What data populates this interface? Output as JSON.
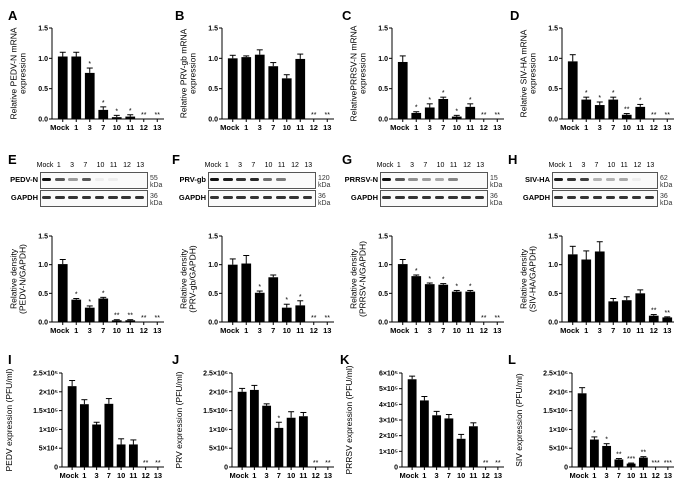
{
  "panels": {
    "A": "A",
    "B": "B",
    "C": "C",
    "D": "D",
    "E": "E",
    "F": "F",
    "G": "G",
    "H": "H",
    "I": "I",
    "J": "J",
    "K": "K",
    "L": "L"
  },
  "blots": [
    {
      "panel": "E",
      "lanes": [
        "Mock",
        "1",
        "3",
        "7",
        "10",
        "11",
        "12",
        "13"
      ],
      "target": "PEDV-N",
      "target_kda": "55 kDa",
      "ctrl": "GAPDH",
      "ctrl_kda": "36 kDa",
      "target_intensity": [
        1,
        0.7,
        0.4,
        0.7,
        0.05,
        0.05,
        0,
        0
      ]
    },
    {
      "panel": "F",
      "lanes": [
        "Mock",
        "1",
        "3",
        "7",
        "10",
        "11",
        "12",
        "13"
      ],
      "target": "PRV-gb",
      "target_kda": "120 kDa",
      "ctrl": "GAPDH",
      "ctrl_kda": "36 kDa",
      "target_intensity": [
        1,
        0.95,
        0.85,
        0.9,
        0.6,
        0.55,
        0,
        0
      ]
    },
    {
      "panel": "G",
      "lanes": [
        "Mock",
        "1",
        "3",
        "7",
        "10",
        "11",
        "12",
        "13"
      ],
      "target": "PRRSV-N",
      "target_kda": "15 kDa",
      "ctrl": "GAPDH",
      "ctrl_kda": "36 kDa",
      "target_intensity": [
        1,
        0.7,
        0.45,
        0.4,
        0.35,
        0.5,
        0,
        0
      ]
    },
    {
      "panel": "H",
      "lanes": [
        "Mock",
        "1",
        "3",
        "7",
        "10",
        "11",
        "12",
        "13"
      ],
      "target": "SIV-HA",
      "target_kda": "62 kDa",
      "ctrl": "GAPDH",
      "ctrl_kda": "36 kDa",
      "target_intensity": [
        0.95,
        0.85,
        0.8,
        0.3,
        0.3,
        0.35,
        0.05,
        0
      ]
    }
  ],
  "chart_data": [
    {
      "panel": "A",
      "type": "bar",
      "ylabel": "Relative PEDV-N mRNA expression",
      "ylim": [
        0,
        1.5
      ],
      "yticks": [
        "0.0",
        "0.5",
        "1.0",
        "1.5"
      ],
      "yticks_v": [
        0,
        0.5,
        1,
        1.5
      ],
      "categories": [
        "Mock",
        "1",
        "3",
        "7",
        "10",
        "11",
        "12",
        "13"
      ],
      "values": [
        1.03,
        1.03,
        0.76,
        0.15,
        0.03,
        0.04,
        0,
        0
      ],
      "errors": [
        0.07,
        0.07,
        0.08,
        0.05,
        0.03,
        0.03,
        0,
        0
      ],
      "sig": [
        "",
        "",
        "*",
        "*",
        "*",
        "*",
        "**",
        "**"
      ]
    },
    {
      "panel": "B",
      "type": "bar",
      "ylabel": "Relative PRV-gb mRNA expression",
      "ylim": [
        0,
        1.5
      ],
      "yticks": [
        "0.0",
        "0.5",
        "1.0",
        "1.5"
      ],
      "yticks_v": [
        0,
        0.5,
        1,
        1.5
      ],
      "categories": [
        "Mock",
        "1",
        "3",
        "7",
        "10",
        "11",
        "12",
        "13"
      ],
      "values": [
        1.0,
        1.02,
        1.06,
        0.87,
        0.67,
        0.99,
        0,
        0
      ],
      "errors": [
        0.05,
        0.02,
        0.08,
        0.06,
        0.06,
        0.08,
        0,
        0
      ],
      "sig": [
        "",
        "",
        "",
        "",
        "",
        "",
        "**",
        "**"
      ]
    },
    {
      "panel": "C",
      "type": "bar",
      "ylabel": "RelativePRRSV-N mRNA expression",
      "ylim": [
        0,
        1.5
      ],
      "yticks": [
        "0.0",
        "0.5",
        "1.0",
        "1.5"
      ],
      "yticks_v": [
        0,
        0.5,
        1,
        1.5
      ],
      "categories": [
        "Mock",
        "1",
        "3",
        "7",
        "10",
        "11",
        "12",
        "13"
      ],
      "values": [
        0.94,
        0.1,
        0.19,
        0.33,
        0.04,
        0.2,
        0,
        0
      ],
      "errors": [
        0.1,
        0.02,
        0.06,
        0.03,
        0.02,
        0.05,
        0,
        0
      ],
      "sig": [
        "",
        "*",
        "*",
        "*",
        "*",
        "*",
        "**",
        "**"
      ]
    },
    {
      "panel": "D",
      "type": "bar",
      "ylabel": "Relative SIV-HA mRNA expression",
      "ylim": [
        0,
        1.5
      ],
      "yticks": [
        "0.0",
        "0.5",
        "1.0",
        "1.5"
      ],
      "yticks_v": [
        0,
        0.5,
        1,
        1.5
      ],
      "categories": [
        "Mock",
        "1",
        "3",
        "7",
        "10",
        "11",
        "12",
        "13"
      ],
      "values": [
        0.95,
        0.32,
        0.23,
        0.32,
        0.07,
        0.2,
        0,
        0
      ],
      "errors": [
        0.11,
        0.04,
        0.05,
        0.04,
        0.02,
        0.04,
        0,
        0
      ],
      "sig": [
        "",
        "*",
        "*",
        "*",
        "**",
        "*",
        "**",
        "**"
      ]
    },
    {
      "panel": "E",
      "type": "bar",
      "ylabel": "Relative density (PEDV-N/GAPDH)",
      "ylim": [
        0,
        1.5
      ],
      "yticks": [
        "0.0",
        "0.5",
        "1.0",
        "1.5"
      ],
      "yticks_v": [
        0,
        0.5,
        1,
        1.5
      ],
      "categories": [
        "Mock",
        "1",
        "3",
        "7",
        "10",
        "11",
        "12",
        "13"
      ],
      "values": [
        1.01,
        0.39,
        0.25,
        0.41,
        0.03,
        0.03,
        0,
        0
      ],
      "errors": [
        0.08,
        0.02,
        0.03,
        0.02,
        0.01,
        0.01,
        0,
        0
      ],
      "sig": [
        "",
        "*",
        "*",
        "*",
        "**",
        "**",
        "**",
        "**"
      ]
    },
    {
      "panel": "F",
      "type": "bar",
      "ylabel": "Relative density (PRV-gb/GAPDH)",
      "ylim": [
        0,
        1.5
      ],
      "yticks": [
        "0.0",
        "0.5",
        "1.0",
        "1.5"
      ],
      "yticks_v": [
        0,
        0.5,
        1,
        1.5
      ],
      "categories": [
        "Mock",
        "1",
        "3",
        "7",
        "10",
        "11",
        "12",
        "13"
      ],
      "values": [
        1.0,
        1.02,
        0.51,
        0.78,
        0.25,
        0.29,
        0,
        0
      ],
      "errors": [
        0.1,
        0.14,
        0.03,
        0.04,
        0.06,
        0.08,
        0,
        0
      ],
      "sig": [
        "",
        "",
        "*",
        "",
        "*",
        "*",
        "**",
        "**"
      ]
    },
    {
      "panel": "G",
      "type": "bar",
      "ylabel": "Relative density (PRRSV-N/GAPDH)",
      "ylim": [
        0,
        1.5
      ],
      "yticks": [
        "0.0",
        "0.5",
        "1.0",
        "1.5"
      ],
      "yticks_v": [
        0,
        0.5,
        1,
        1.5
      ],
      "categories": [
        "Mock",
        "1",
        "3",
        "7",
        "10",
        "11",
        "12",
        "13"
      ],
      "values": [
        1.01,
        0.8,
        0.66,
        0.65,
        0.53,
        0.53,
        0,
        0
      ],
      "errors": [
        0.08,
        0.02,
        0.02,
        0.02,
        0.02,
        0.02,
        0,
        0
      ],
      "sig": [
        "",
        "*",
        "*",
        "*",
        "*",
        "*",
        "**",
        "**"
      ]
    },
    {
      "panel": "H",
      "type": "bar",
      "ylabel": "Relative density (SIV-HA/GAPDH)",
      "ylim": [
        0,
        1.5
      ],
      "yticks": [
        "0.0",
        "0.5",
        "1.0",
        "1.5"
      ],
      "yticks_v": [
        0,
        0.5,
        1,
        1.5
      ],
      "categories": [
        "Mock",
        "1",
        "3",
        "7",
        "10",
        "11",
        "12",
        "13"
      ],
      "values": [
        1.18,
        1.09,
        1.23,
        0.36,
        0.38,
        0.5,
        0.11,
        0.08
      ],
      "errors": [
        0.14,
        0.15,
        0.17,
        0.05,
        0.06,
        0.06,
        0.02,
        0.01
      ],
      "sig": [
        "",
        "",
        "",
        "",
        "",
        "",
        "**",
        "**"
      ]
    },
    {
      "panel": "I",
      "type": "bar",
      "ylabel": "PEDV expression (PFU/ml)",
      "ylim": [
        0,
        250000
      ],
      "yticks": [
        "0",
        "5×10⁴",
        "1×10⁵",
        "1.5×10⁵",
        "2×10⁵",
        "2.5×10⁵"
      ],
      "yticks_v": [
        0,
        50000,
        100000,
        150000,
        200000,
        250000
      ],
      "categories": [
        "Mock",
        "1",
        "3",
        "7",
        "10",
        "11",
        "12",
        "13"
      ],
      "values": [
        215000,
        167000,
        113000,
        168000,
        60000,
        60000,
        0,
        0
      ],
      "errors": [
        15000,
        12000,
        6000,
        14000,
        15000,
        12000,
        0,
        0
      ],
      "sig": [
        "",
        "",
        "",
        "",
        "",
        "",
        "**",
        "**"
      ]
    },
    {
      "panel": "J",
      "type": "bar",
      "ylabel": "PRV expression (PFU/ml)",
      "ylim": [
        0,
        2500000
      ],
      "yticks": [
        "0",
        "5×10⁵",
        "1×10⁶",
        "1.5×10⁶",
        "2×10⁶",
        "2.5×10⁶"
      ],
      "yticks_v": [
        0,
        500000,
        1000000,
        1500000,
        2000000,
        2500000
      ],
      "categories": [
        "Mock",
        "1",
        "3",
        "7",
        "10",
        "11",
        "12",
        "13"
      ],
      "values": [
        2000000,
        2050000,
        1630000,
        1040000,
        1310000,
        1350000,
        0,
        0
      ],
      "errors": [
        90000,
        120000,
        50000,
        150000,
        160000,
        100000,
        0,
        0
      ],
      "sig": [
        "",
        "",
        "",
        "*",
        "",
        "",
        "**",
        "**"
      ]
    },
    {
      "panel": "K",
      "type": "bar",
      "ylabel": "PRRSV expression (PFU/ml)",
      "ylim": [
        0,
        600000
      ],
      "yticks": [
        "0",
        "1×10⁵",
        "2×10⁵",
        "3×10⁵",
        "4×10⁵",
        "5×10⁵",
        "6×10⁵"
      ],
      "yticks_v": [
        0,
        100000,
        200000,
        300000,
        400000,
        500000,
        600000
      ],
      "categories": [
        "Mock",
        "1",
        "3",
        "7",
        "10",
        "11",
        "12",
        "13"
      ],
      "values": [
        560000,
        425000,
        330000,
        310000,
        180000,
        260000,
        0,
        0
      ],
      "errors": [
        20000,
        25000,
        25000,
        25000,
        28000,
        22000,
        0,
        0
      ],
      "sig": [
        "",
        "",
        "",
        "",
        "",
        "",
        "**",
        "**"
      ]
    },
    {
      "panel": "L",
      "type": "bar",
      "ylabel": "SIV expression (PFU/ml)",
      "ylim": [
        0,
        2500000
      ],
      "yticks": [
        "0",
        "5×10⁵",
        "1×10⁶",
        "1.5×10⁶",
        "2×10⁶",
        "2.5×10⁶"
      ],
      "yticks_v": [
        0,
        500000,
        1000000,
        1500000,
        2000000,
        2500000
      ],
      "categories": [
        "Mock",
        "1",
        "3",
        "7",
        "10",
        "11",
        "12",
        "13"
      ],
      "values": [
        1960000,
        730000,
        560000,
        200000,
        90000,
        250000,
        0,
        0
      ],
      "errors": [
        150000,
        70000,
        60000,
        25000,
        15000,
        25000,
        0,
        0
      ],
      "sig": [
        "",
        "*",
        "*",
        "**",
        "***",
        "**",
        "***",
        "***"
      ]
    }
  ]
}
